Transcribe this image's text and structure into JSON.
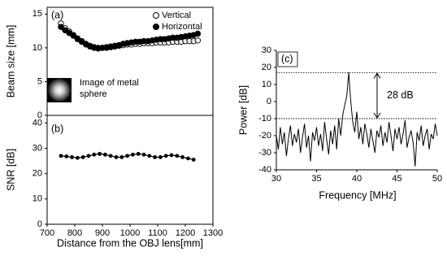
{
  "chart_data": [
    {
      "type": "scatter",
      "panel_label": "(a)",
      "y_label": "Beam size [mm]",
      "inset_label": [
        "Image of metal",
        "sphere"
      ],
      "xlim": [
        700,
        1300
      ],
      "ylim": [
        0,
        16
      ],
      "yticks": [
        0,
        5,
        10,
        15
      ],
      "legend": "top-right",
      "x": [
        750,
        765,
        780,
        795,
        810,
        825,
        840,
        855,
        870,
        885,
        900,
        915,
        930,
        945,
        960,
        975,
        990,
        1005,
        1020,
        1035,
        1050,
        1065,
        1080,
        1095,
        1110,
        1125,
        1140,
        1155,
        1170,
        1185,
        1200,
        1215,
        1230,
        1245
      ],
      "series": [
        {
          "name": "Vertical",
          "color": "#000000",
          "marker": "open",
          "values": [
            13.6,
            12.9,
            12.4,
            11.9,
            11.4,
            11.0,
            10.6,
            10.3,
            10.1,
            10.0,
            10.0,
            10.0,
            10.1,
            10.2,
            10.3,
            10.4,
            10.5,
            10.5,
            10.6,
            10.6,
            10.7,
            10.7,
            10.7,
            10.8,
            10.8,
            10.8,
            10.8,
            10.9,
            10.9,
            10.9,
            11.0,
            11.0,
            11.0,
            11.1
          ]
        },
        {
          "name": "Horizontal",
          "color": "#000000",
          "marker": "filled",
          "values": [
            13.1,
            12.6,
            12.2,
            11.8,
            11.3,
            10.9,
            10.5,
            10.2,
            10.0,
            9.9,
            10.0,
            10.1,
            10.2,
            10.3,
            10.4,
            10.6,
            10.7,
            10.8,
            10.9,
            10.9,
            11.0,
            11.0,
            11.1,
            11.2,
            11.3,
            11.3,
            11.4,
            11.5,
            11.5,
            11.6,
            11.7,
            11.8,
            11.9,
            12.1
          ]
        }
      ]
    },
    {
      "type": "line",
      "panel_label": "(b)",
      "y_label": "SNR [dB]",
      "x_label": "Distance from the OBJ lens[mm]",
      "xlim": [
        700,
        1300
      ],
      "xticks": [
        700,
        800,
        900,
        1000,
        1100,
        1200,
        1300
      ],
      "ylim": [
        0,
        43
      ],
      "yticks": [
        0,
        10,
        20,
        30,
        40
      ],
      "color": "#000000",
      "x": [
        750,
        770,
        790,
        810,
        830,
        850,
        870,
        890,
        910,
        930,
        950,
        970,
        990,
        1010,
        1030,
        1050,
        1070,
        1090,
        1110,
        1130,
        1150,
        1170,
        1190,
        1210,
        1230
      ],
      "values": [
        27,
        26.8,
        26.5,
        26.2,
        26.5,
        27,
        27.5,
        27.8,
        27.5,
        27,
        26.5,
        26.5,
        27,
        27.5,
        27.8,
        27.5,
        27,
        26.5,
        26.5,
        27,
        27.3,
        27,
        26.5,
        26,
        25.5
      ]
    },
    {
      "type": "line",
      "panel_label": "(c)",
      "y_label": "Power [dB]",
      "x_label": "Frequency [MHz]",
      "annotation": "28 dB",
      "hlines": [
        17,
        -10
      ],
      "xlim": [
        30,
        50
      ],
      "xticks": [
        30,
        35,
        40,
        45,
        50
      ],
      "ylim": [
        -40,
        30
      ],
      "yticks": [
        -40,
        -30,
        -20,
        -10,
        0,
        10,
        20,
        30
      ],
      "color": "#000000",
      "x": [
        30,
        30.25,
        30.5,
        30.75,
        31,
        31.25,
        31.5,
        31.75,
        32,
        32.25,
        32.5,
        32.75,
        33,
        33.25,
        33.5,
        33.75,
        34,
        34.25,
        34.5,
        34.75,
        35,
        35.25,
        35.5,
        35.75,
        36,
        36.25,
        36.5,
        36.75,
        37,
        37.25,
        37.5,
        37.75,
        38,
        38.25,
        38.5,
        38.75,
        39,
        39.25,
        39.5,
        39.75,
        40,
        40.25,
        40.5,
        40.75,
        41,
        41.25,
        41.5,
        41.75,
        42,
        42.25,
        42.5,
        42.75,
        43,
        43.25,
        43.5,
        43.75,
        44,
        44.25,
        44.5,
        44.75,
        45,
        45.25,
        45.5,
        45.75,
        46,
        46.25,
        46.5,
        46.75,
        47,
        47.25,
        47.5,
        47.75,
        48,
        48.25,
        48.5,
        48.75,
        49,
        49.25,
        49.5,
        49.75,
        50
      ],
      "values": [
        -20,
        -28,
        -15,
        -25,
        -18,
        -32,
        -22,
        -14,
        -26,
        -19,
        -24,
        -16,
        -30,
        -21,
        -13,
        -27,
        -20,
        -35,
        -18,
        -23,
        -15,
        -26,
        -19,
        -29,
        -12,
        -22,
        -31,
        -17,
        -25,
        -14,
        -28,
        -10,
        -20,
        -8,
        -2,
        3,
        17,
        0,
        -12,
        -18,
        -6,
        -22,
        -15,
        -25,
        -13,
        -19,
        -27,
        -16,
        -23,
        -30,
        -17,
        -21,
        -14,
        -26,
        -18,
        -24,
        -12,
        -20,
        -29,
        -16,
        -22,
        -15,
        -25,
        -19,
        -11,
        -27,
        -21,
        -17,
        -24,
        -38,
        -18,
        -23,
        -14,
        -26,
        -20,
        -16,
        -28,
        -19,
        -22,
        -13,
        -20
      ]
    }
  ]
}
